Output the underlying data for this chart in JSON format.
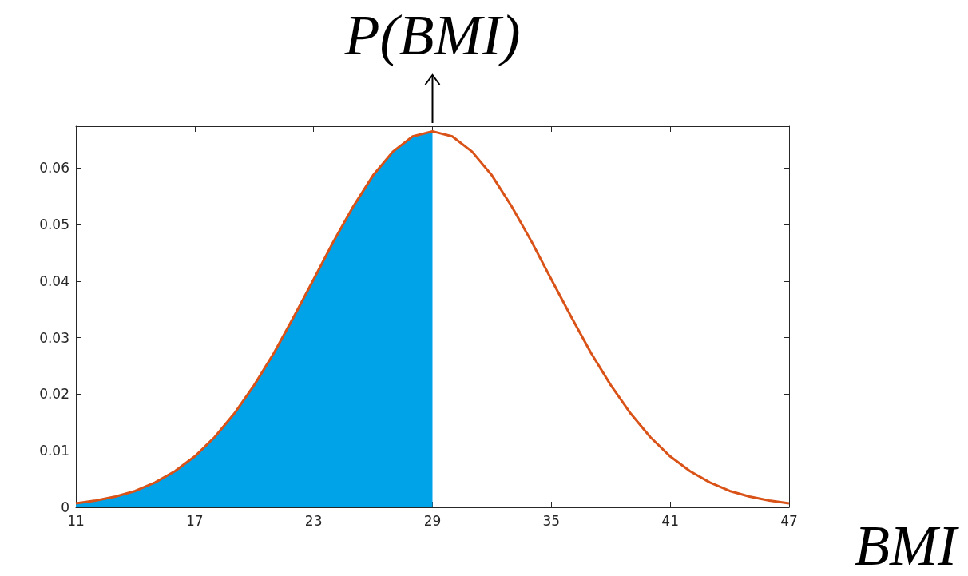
{
  "chart_data": {
    "type": "line",
    "title": "P(BMI)",
    "xlabel": "BMI",
    "series": [
      {
        "type": "area",
        "color": "#00a2e8",
        "x": [
          11,
          12,
          13,
          14,
          15,
          16,
          17,
          18,
          19,
          20,
          21,
          22,
          23,
          24,
          25,
          26,
          27,
          28,
          29
        ],
        "values": [
          0.0007,
          0.0012,
          0.0019,
          0.0029,
          0.0044,
          0.0064,
          0.009,
          0.0124,
          0.0166,
          0.0216,
          0.0273,
          0.0337,
          0.0403,
          0.047,
          0.0532,
          0.0587,
          0.0629,
          0.0656,
          0.0665
        ]
      },
      {
        "color": "#d95319",
        "x": [
          11,
          12,
          13,
          14,
          15,
          16,
          17,
          18,
          19,
          20,
          21,
          22,
          23,
          24,
          25,
          26,
          27,
          28,
          29,
          30,
          31,
          32,
          33,
          34,
          35,
          36,
          37,
          38,
          39,
          40,
          41,
          42,
          43,
          44,
          45,
          46,
          47
        ],
        "values": [
          0.0007,
          0.0012,
          0.0019,
          0.0029,
          0.0044,
          0.0064,
          0.009,
          0.0124,
          0.0166,
          0.0216,
          0.0273,
          0.0337,
          0.0403,
          0.047,
          0.0532,
          0.0587,
          0.0629,
          0.0656,
          0.0665,
          0.0656,
          0.0629,
          0.0587,
          0.0532,
          0.047,
          0.0403,
          0.0337,
          0.0273,
          0.0216,
          0.0166,
          0.0124,
          0.009,
          0.0064,
          0.0044,
          0.0029,
          0.0019,
          0.0012,
          0.0007
        ]
      }
    ],
    "xlim": [
      11,
      47
    ],
    "xticks": [
      11,
      17,
      23,
      29,
      35,
      41,
      47
    ],
    "ylim": [
      0,
      0.0674
    ],
    "yticks": [
      0,
      0.01,
      0.02,
      0.03,
      0.04,
      0.05,
      0.06
    ],
    "grid": false,
    "marker": "none",
    "line_style": "solid"
  }
}
